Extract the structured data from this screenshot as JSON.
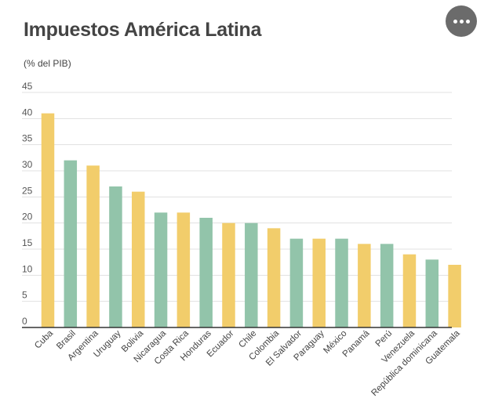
{
  "chart_data": {
    "type": "bar",
    "title": "Impuestos América Latina",
    "ylabel": "(% del PIB)",
    "xlabel": "",
    "ylim": [
      0,
      45
    ],
    "yticks": [
      0,
      5,
      10,
      15,
      20,
      25,
      30,
      35,
      40,
      45
    ],
    "grid": true,
    "categories": [
      "Cuba",
      "Brasil",
      "Argentina",
      "Uruguay",
      "Bolivia",
      "Nicaragua",
      "Costa Rica",
      "Honduras",
      "Ecuador",
      "Chile",
      "Colombia",
      "El Salvador",
      "Paraguay",
      "México",
      "Panamá",
      "Perú",
      "Venezuela",
      "República dominicana",
      "Guatemala"
    ],
    "values": [
      41,
      32,
      31,
      27,
      26,
      22,
      22,
      21,
      20,
      20,
      19,
      17,
      17,
      17,
      16,
      16,
      14,
      13,
      12
    ],
    "bar_colors": [
      "#f2cd6b",
      "#92c4aa",
      "#f2cd6b",
      "#92c4aa",
      "#f2cd6b",
      "#92c4aa",
      "#f2cd6b",
      "#92c4aa",
      "#f2cd6b",
      "#92c4aa",
      "#f2cd6b",
      "#92c4aa",
      "#f2cd6b",
      "#92c4aa",
      "#f2cd6b",
      "#92c4aa",
      "#f2cd6b",
      "#92c4aa",
      "#f2cd6b"
    ]
  },
  "menu_button": {
    "icon": "more-horizontal-icon"
  }
}
